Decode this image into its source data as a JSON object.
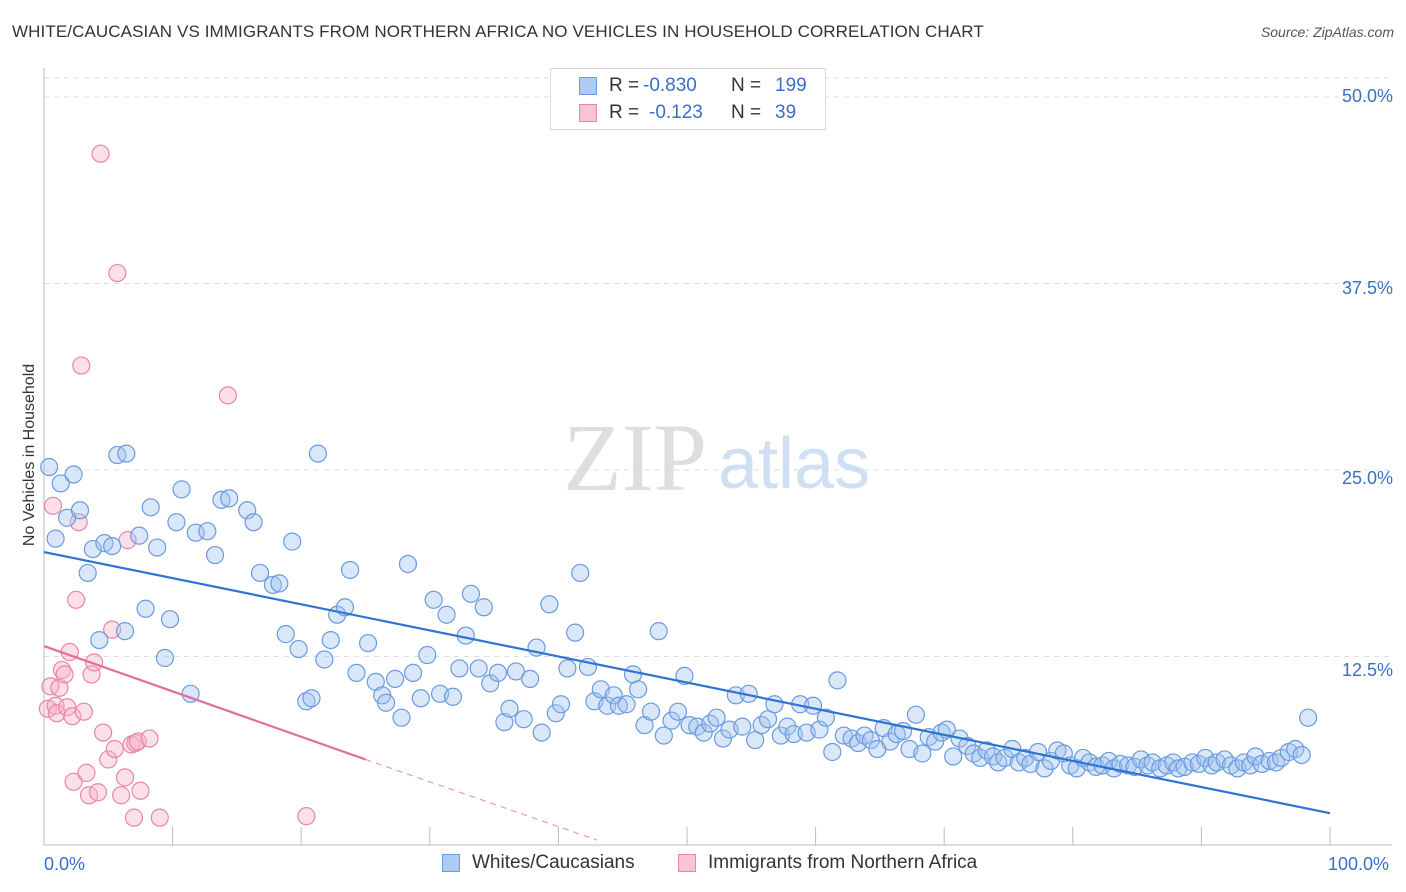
{
  "title": "WHITE/CAUCASIAN VS IMMIGRANTS FROM NORTHERN AFRICA NO VEHICLES IN HOUSEHOLD CORRELATION CHART",
  "source": "Source: ZipAtlas.com",
  "watermark": {
    "zip": "ZIP",
    "atlas": "atlas"
  },
  "legend": {
    "rows": [
      {
        "r_label": "R =",
        "r_value": "-0.830",
        "n_label": "N =",
        "n_value": "199",
        "color": "#aecbf2",
        "border": "#6a9be0"
      },
      {
        "r_label": "R =",
        "r_value": "-0.123",
        "n_label": "N =",
        "n_value": "39",
        "color": "#f8c3d2",
        "border": "#e886a6"
      }
    ]
  },
  "colors": {
    "blue_fill": "rgba(160,196,240,0.40)",
    "blue_stroke": "#6a9be0",
    "blue_line": "#2f74d0",
    "pink_fill": "rgba(246,178,200,0.40)",
    "pink_stroke": "#e886a6",
    "pink_line": "#e0709a",
    "grid": "#dddddd",
    "tick_text": "#3a6fc4"
  },
  "chart_data": {
    "type": "scatter",
    "title": "WHITE/CAUCASIAN VS IMMIGRANTS FROM NORTHERN AFRICA NO VEHICLES IN HOUSEHOLD CORRELATION CHART",
    "xlabel": "",
    "ylabel": "No Vehicles in Household",
    "xlim": [
      0,
      100
    ],
    "ylim": [
      0,
      50
    ],
    "x_tick_labels": [
      "0.0%",
      "100.0%"
    ],
    "y_ticks": [
      12.5,
      25.0,
      37.5,
      50.0
    ],
    "y_tick_labels": [
      "12.5%",
      "25.0%",
      "37.5%",
      "50.0%"
    ],
    "grid": true,
    "legend_position": "top-center",
    "series": [
      {
        "name": "Whites/Caucasians",
        "r": -0.83,
        "n": 199,
        "trend": {
          "x": [
            0,
            100
          ],
          "y": [
            19.5,
            2.0
          ]
        },
        "points": [
          [
            0.4,
            25.2
          ],
          [
            1.3,
            24.1
          ],
          [
            2.3,
            24.7
          ],
          [
            0.9,
            20.4
          ],
          [
            1.8,
            21.8
          ],
          [
            2.8,
            22.3
          ],
          [
            3.4,
            18.1
          ],
          [
            3.8,
            19.7
          ],
          [
            4.3,
            13.6
          ],
          [
            4.7,
            20.1
          ],
          [
            5.3,
            19.9
          ],
          [
            5.7,
            26.0
          ],
          [
            6.4,
            26.1
          ],
          [
            6.3,
            14.2
          ],
          [
            7.4,
            20.6
          ],
          [
            7.9,
            15.7
          ],
          [
            8.3,
            22.5
          ],
          [
            8.8,
            19.8
          ],
          [
            9.4,
            12.4
          ],
          [
            9.8,
            15.0
          ],
          [
            10.3,
            21.5
          ],
          [
            10.7,
            23.7
          ],
          [
            11.4,
            10.0
          ],
          [
            11.8,
            20.8
          ],
          [
            12.7,
            20.9
          ],
          [
            13.3,
            19.3
          ],
          [
            13.8,
            23.0
          ],
          [
            14.4,
            23.1
          ],
          [
            15.8,
            22.3
          ],
          [
            16.3,
            21.5
          ],
          [
            16.8,
            18.1
          ],
          [
            17.8,
            17.3
          ],
          [
            18.3,
            17.4
          ],
          [
            18.8,
            14.0
          ],
          [
            19.3,
            20.2
          ],
          [
            19.8,
            13.0
          ],
          [
            20.4,
            9.5
          ],
          [
            20.8,
            9.7
          ],
          [
            21.3,
            26.1
          ],
          [
            21.8,
            12.3
          ],
          [
            22.3,
            13.6
          ],
          [
            22.8,
            15.3
          ],
          [
            23.4,
            15.8
          ],
          [
            23.8,
            18.3
          ],
          [
            24.3,
            11.4
          ],
          [
            25.2,
            13.4
          ],
          [
            25.8,
            10.8
          ],
          [
            26.3,
            9.9
          ],
          [
            26.6,
            9.4
          ],
          [
            27.3,
            11.0
          ],
          [
            27.8,
            8.4
          ],
          [
            28.3,
            18.7
          ],
          [
            28.7,
            11.4
          ],
          [
            29.3,
            9.7
          ],
          [
            29.8,
            12.6
          ],
          [
            30.3,
            16.3
          ],
          [
            30.8,
            10.0
          ],
          [
            31.3,
            15.3
          ],
          [
            31.8,
            9.8
          ],
          [
            32.3,
            11.7
          ],
          [
            32.8,
            13.9
          ],
          [
            33.2,
            16.7
          ],
          [
            33.8,
            11.7
          ],
          [
            34.2,
            15.8
          ],
          [
            34.7,
            10.7
          ],
          [
            35.3,
            11.4
          ],
          [
            35.8,
            8.1
          ],
          [
            36.2,
            9.0
          ],
          [
            36.7,
            11.5
          ],
          [
            37.3,
            8.3
          ],
          [
            37.8,
            11.0
          ],
          [
            38.3,
            13.1
          ],
          [
            38.7,
            7.4
          ],
          [
            39.3,
            16.0
          ],
          [
            39.8,
            8.7
          ],
          [
            40.2,
            9.3
          ],
          [
            40.7,
            11.7
          ],
          [
            41.3,
            14.1
          ],
          [
            41.7,
            18.1
          ],
          [
            42.3,
            11.8
          ],
          [
            42.8,
            9.5
          ],
          [
            43.3,
            10.3
          ],
          [
            43.8,
            9.2
          ],
          [
            44.3,
            9.9
          ],
          [
            44.7,
            9.2
          ],
          [
            45.3,
            9.3
          ],
          [
            45.8,
            11.3
          ],
          [
            46.2,
            10.3
          ],
          [
            46.7,
            7.9
          ],
          [
            47.2,
            8.8
          ],
          [
            47.8,
            14.2
          ],
          [
            48.2,
            7.2
          ],
          [
            48.8,
            8.2
          ],
          [
            49.3,
            8.8
          ],
          [
            49.8,
            11.2
          ],
          [
            50.2,
            7.9
          ],
          [
            50.8,
            7.8
          ],
          [
            51.3,
            7.4
          ],
          [
            51.8,
            8.0
          ],
          [
            52.3,
            8.4
          ],
          [
            52.8,
            7.0
          ],
          [
            53.3,
            7.6
          ],
          [
            53.8,
            9.9
          ],
          [
            54.3,
            7.8
          ],
          [
            54.8,
            10.0
          ],
          [
            55.3,
            6.9
          ],
          [
            55.8,
            7.9
          ],
          [
            56.3,
            8.3
          ],
          [
            56.8,
            9.3
          ],
          [
            57.3,
            7.2
          ],
          [
            57.8,
            7.8
          ],
          [
            58.3,
            7.3
          ],
          [
            58.8,
            9.3
          ],
          [
            59.3,
            7.4
          ],
          [
            59.8,
            9.2
          ],
          [
            60.3,
            7.6
          ],
          [
            60.8,
            8.4
          ],
          [
            61.3,
            6.1
          ],
          [
            61.7,
            10.9
          ],
          [
            62.2,
            7.2
          ],
          [
            62.8,
            7.0
          ],
          [
            63.3,
            6.7
          ],
          [
            63.8,
            7.2
          ],
          [
            64.3,
            6.9
          ],
          [
            64.8,
            6.3
          ],
          [
            65.3,
            7.7
          ],
          [
            65.8,
            6.8
          ],
          [
            66.3,
            7.3
          ],
          [
            66.8,
            7.5
          ],
          [
            67.3,
            6.3
          ],
          [
            67.8,
            8.6
          ],
          [
            68.3,
            6.0
          ],
          [
            68.8,
            7.1
          ],
          [
            69.3,
            6.8
          ],
          [
            69.8,
            7.4
          ],
          [
            70.2,
            7.6
          ],
          [
            70.7,
            5.8
          ],
          [
            71.2,
            7.0
          ],
          [
            71.8,
            6.5
          ],
          [
            72.3,
            6.0
          ],
          [
            72.8,
            5.7
          ],
          [
            73.3,
            6.2
          ],
          [
            73.8,
            5.8
          ],
          [
            74.2,
            5.4
          ],
          [
            74.7,
            5.7
          ],
          [
            75.3,
            6.3
          ],
          [
            75.8,
            5.4
          ],
          [
            76.3,
            5.7
          ],
          [
            76.7,
            5.3
          ],
          [
            77.3,
            6.1
          ],
          [
            77.8,
            5.0
          ],
          [
            78.3,
            5.5
          ],
          [
            78.8,
            6.2
          ],
          [
            79.3,
            6.0
          ],
          [
            79.8,
            5.2
          ],
          [
            80.3,
            5.0
          ],
          [
            80.8,
            5.7
          ],
          [
            81.3,
            5.4
          ],
          [
            81.8,
            5.1
          ],
          [
            82.3,
            5.2
          ],
          [
            82.8,
            5.5
          ],
          [
            83.2,
            5.0
          ],
          [
            83.7,
            5.3
          ],
          [
            84.3,
            5.2
          ],
          [
            84.8,
            5.1
          ],
          [
            85.3,
            5.6
          ],
          [
            85.8,
            5.2
          ],
          [
            86.2,
            5.4
          ],
          [
            86.8,
            5.0
          ],
          [
            87.3,
            5.2
          ],
          [
            87.8,
            5.4
          ],
          [
            88.2,
            5.0
          ],
          [
            88.7,
            5.1
          ],
          [
            89.3,
            5.4
          ],
          [
            89.8,
            5.3
          ],
          [
            90.3,
            5.7
          ],
          [
            90.8,
            5.2
          ],
          [
            91.2,
            5.4
          ],
          [
            91.8,
            5.6
          ],
          [
            92.3,
            5.2
          ],
          [
            92.8,
            5.0
          ],
          [
            93.3,
            5.4
          ],
          [
            93.8,
            5.2
          ],
          [
            94.2,
            5.8
          ],
          [
            94.7,
            5.3
          ],
          [
            95.3,
            5.5
          ],
          [
            95.8,
            5.4
          ],
          [
            96.2,
            5.7
          ],
          [
            96.8,
            6.1
          ],
          [
            97.3,
            6.3
          ],
          [
            97.8,
            5.9
          ],
          [
            98.3,
            8.4
          ]
        ]
      },
      {
        "name": "Immigrants from Northern Africa",
        "r": -0.123,
        "n": 39,
        "trend": {
          "x": [
            0,
            25
          ],
          "y": [
            13.2,
            5.6
          ]
        },
        "trend_dashed": {
          "x": [
            25,
            43
          ],
          "y": [
            5.6,
            0.2
          ]
        },
        "points": [
          [
            0.3,
            9.0
          ],
          [
            0.5,
            10.5
          ],
          [
            0.7,
            22.6
          ],
          [
            0.9,
            9.2
          ],
          [
            1.0,
            8.7
          ],
          [
            1.2,
            10.4
          ],
          [
            1.4,
            11.6
          ],
          [
            1.6,
            11.3
          ],
          [
            1.8,
            9.1
          ],
          [
            2.0,
            12.8
          ],
          [
            2.2,
            8.5
          ],
          [
            2.3,
            4.1
          ],
          [
            2.5,
            16.3
          ],
          [
            2.7,
            21.5
          ],
          [
            2.9,
            32.0
          ],
          [
            3.1,
            8.8
          ],
          [
            3.3,
            4.7
          ],
          [
            3.5,
            3.2
          ],
          [
            3.7,
            11.3
          ],
          [
            3.9,
            12.1
          ],
          [
            4.2,
            3.4
          ],
          [
            4.4,
            46.2
          ],
          [
            4.6,
            7.4
          ],
          [
            5.0,
            5.6
          ],
          [
            5.3,
            14.3
          ],
          [
            5.5,
            6.3
          ],
          [
            5.7,
            38.2
          ],
          [
            6.0,
            3.2
          ],
          [
            6.3,
            4.4
          ],
          [
            6.5,
            20.3
          ],
          [
            6.8,
            6.6
          ],
          [
            7.1,
            6.7
          ],
          [
            7.3,
            6.8
          ],
          [
            7.0,
            1.7
          ],
          [
            7.5,
            3.5
          ],
          [
            9.0,
            1.7
          ],
          [
            8.2,
            7.0
          ],
          [
            14.3,
            30.0
          ],
          [
            20.4,
            1.8
          ]
        ]
      }
    ]
  },
  "bottom_legend": [
    {
      "label": "Whites/Caucasians"
    },
    {
      "label": "Immigrants from Northern Africa"
    }
  ]
}
